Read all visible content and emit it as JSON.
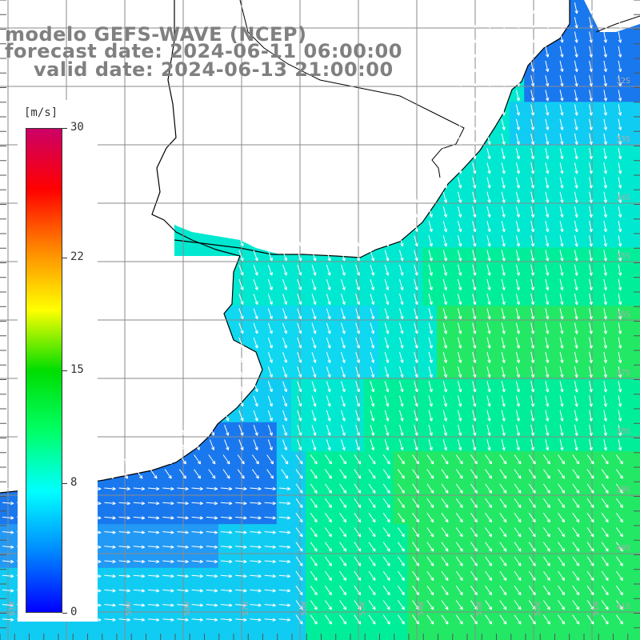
{
  "header": {
    "model": "modelo GEFS-WAVE (NCEP)",
    "forecast": "forecast date: 2024-06-11 06:00:00",
    "valid": "valid date: 2024-06-13 21:00:00"
  },
  "colorbar": {
    "unit": "[m/s]",
    "ticks": [
      "30",
      "22",
      "15",
      "8",
      "0"
    ],
    "tick_values": [
      30,
      22,
      15,
      8,
      0
    ],
    "colors": [
      "#0000ff",
      "#0088ff",
      "#00ffff",
      "#00ff66",
      "#00dd00",
      "#ffff00",
      "#ff8800",
      "#ff0000",
      "#cc0066"
    ]
  },
  "map": {
    "land_color": "#ffffff",
    "grid_color": "#8a8a8a",
    "coast_color": "#000000",
    "lat_labels": [
      "32S",
      "33S",
      "34S",
      "35S",
      "36S",
      "37S",
      "38S",
      "39S",
      "40S",
      "41S"
    ],
    "lon_labels": [
      "61W",
      "60W",
      "59W",
      "58W",
      "57W",
      "56W",
      "55W",
      "54W",
      "53W",
      "52W",
      "51W"
    ],
    "arrow_color": "#ffffff"
  }
}
